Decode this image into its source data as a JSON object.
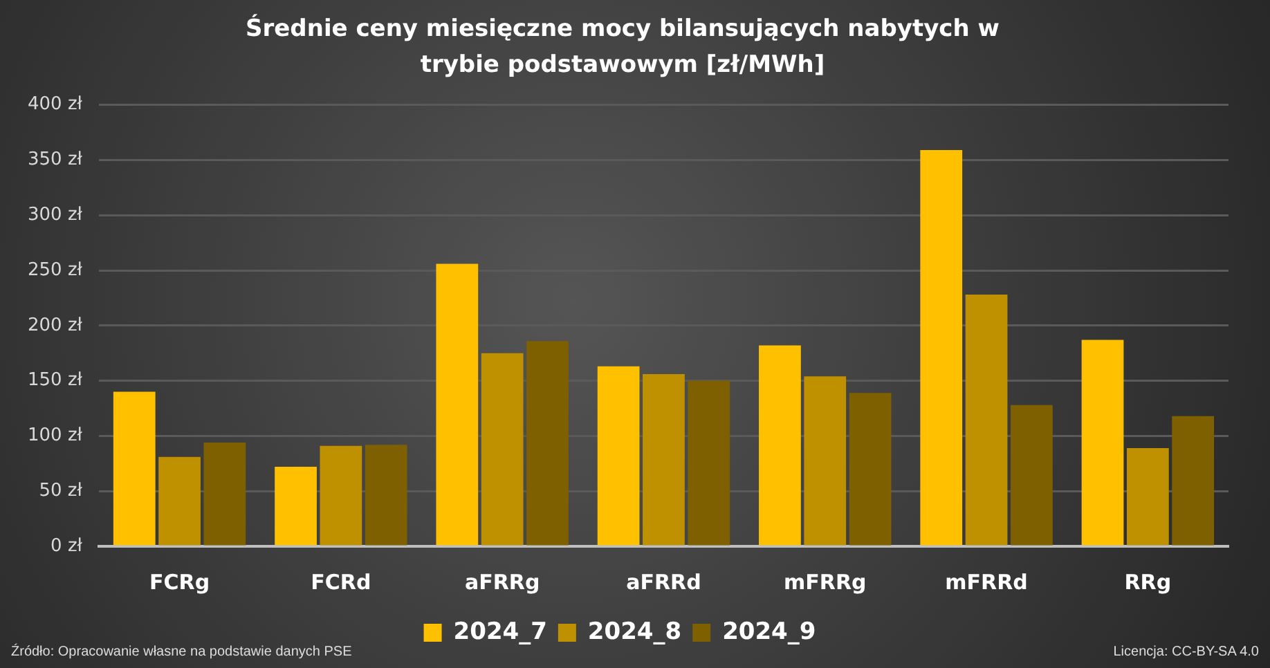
{
  "chart_data": {
    "type": "bar",
    "title": "Średnie ceny miesięczne mocy bilansujących nabytych w trybie podstawowym [zł/MWh]",
    "categories": [
      "FCRg",
      "FCRd",
      "aFRRg",
      "aFRRd",
      "mFRRg",
      "mFRRd",
      "RRg"
    ],
    "series": [
      {
        "name": "2024_7",
        "color": "#ffc000",
        "values": [
          140,
          72,
          256,
          163,
          182,
          359,
          187
        ]
      },
      {
        "name": "2024_8",
        "color": "#bf9000",
        "values": [
          81,
          91,
          175,
          156,
          154,
          228,
          89
        ]
      },
      {
        "name": "2024_9",
        "color": "#7f6000",
        "values": [
          94,
          92,
          186,
          150,
          139,
          128,
          118
        ]
      }
    ],
    "ylim": [
      0,
      400
    ],
    "yticks": [
      {
        "value": 0,
        "label": "0 zł"
      },
      {
        "value": 50,
        "label": "50 zł"
      },
      {
        "value": 100,
        "label": "100 zł"
      },
      {
        "value": 150,
        "label": "150 zł"
      },
      {
        "value": 200,
        "label": "200 zł"
      },
      {
        "value": 250,
        "label": "250 zł"
      },
      {
        "value": 300,
        "label": "300 zł"
      },
      {
        "value": 350,
        "label": "350 zł"
      },
      {
        "value": 400,
        "label": "400 zł"
      }
    ],
    "grid": "y",
    "legend": "bottom",
    "annotations": [
      "Źródło: Opracowanie własne na podstawie danych PSE",
      "Licencja: CC-BY-SA 4.0"
    ]
  }
}
